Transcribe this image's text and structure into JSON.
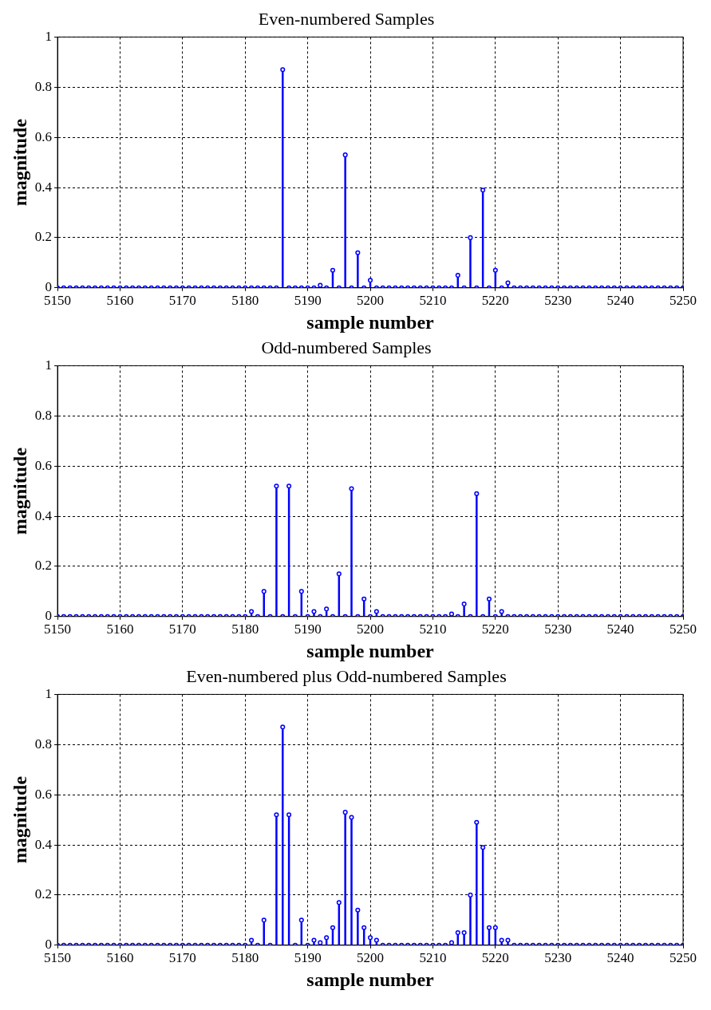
{
  "chart_data": [
    {
      "type": "lollipop",
      "title": "Even-numbered Samples",
      "xlabel": "sample number",
      "ylabel": "magnitude",
      "xlim": [
        5150,
        5250
      ],
      "xticks": [
        5150,
        5160,
        5170,
        5180,
        5190,
        5200,
        5210,
        5220,
        5230,
        5240,
        5250
      ],
      "ylim": [
        0,
        1
      ],
      "yticks": [
        0,
        0.2,
        0.4,
        0.6,
        0.8,
        1
      ],
      "grid": true,
      "legend": false,
      "marker": "circle",
      "series": [
        {
          "color": "#0000ff",
          "x": [
            5150,
            5151,
            5152,
            5153,
            5154,
            5155,
            5156,
            5157,
            5158,
            5159,
            5160,
            5161,
            5162,
            5163,
            5164,
            5165,
            5166,
            5167,
            5168,
            5169,
            5170,
            5171,
            5172,
            5173,
            5174,
            5175,
            5176,
            5177,
            5178,
            5179,
            5180,
            5181,
            5182,
            5183,
            5184,
            5185,
            5186,
            5187,
            5188,
            5189,
            5190,
            5191,
            5192,
            5193,
            5194,
            5195,
            5196,
            5197,
            5198,
            5199,
            5200,
            5201,
            5202,
            5203,
            5204,
            5205,
            5206,
            5207,
            5208,
            5209,
            5210,
            5211,
            5212,
            5213,
            5214,
            5215,
            5216,
            5217,
            5218,
            5219,
            5220,
            5221,
            5222,
            5223,
            5224,
            5225,
            5226,
            5227,
            5228,
            5229,
            5230,
            5231,
            5232,
            5233,
            5234,
            5235,
            5236,
            5237,
            5238,
            5239,
            5240,
            5241,
            5242,
            5243,
            5244,
            5245,
            5246,
            5247,
            5248,
            5249,
            5250
          ],
          "values": [
            0,
            0,
            0,
            0,
            0,
            0,
            0,
            0,
            0,
            0,
            0,
            0,
            0,
            0,
            0,
            0,
            0,
            0,
            0,
            0,
            0,
            0,
            0,
            0,
            0,
            0,
            0,
            0,
            0,
            0,
            0,
            0,
            0,
            0,
            0,
            0,
            0.87,
            0,
            0,
            0,
            0,
            0,
            0.01,
            0,
            0.07,
            0,
            0.53,
            0,
            0.14,
            0,
            0.03,
            0,
            0,
            0,
            0,
            0,
            0,
            0,
            0,
            0,
            0,
            0,
            0,
            0,
            0.05,
            0,
            0.2,
            0,
            0.39,
            0,
            0.07,
            0,
            0.02,
            0,
            0,
            0,
            0,
            0,
            0,
            0,
            0,
            0,
            0,
            0,
            0,
            0,
            0,
            0,
            0,
            0,
            0,
            0,
            0,
            0,
            0,
            0,
            0,
            0,
            0,
            0,
            0
          ]
        }
      ]
    },
    {
      "type": "lollipop",
      "title": "Odd-numbered Samples",
      "xlabel": "sample number",
      "ylabel": "magnitude",
      "xlim": [
        5150,
        5250
      ],
      "xticks": [
        5150,
        5160,
        5170,
        5180,
        5190,
        5200,
        5210,
        5220,
        5230,
        5240,
        5250
      ],
      "ylim": [
        0,
        1
      ],
      "yticks": [
        0,
        0.2,
        0.4,
        0.6,
        0.8,
        1
      ],
      "grid": true,
      "legend": false,
      "marker": "circle",
      "series": [
        {
          "color": "#0000ff",
          "x": [
            5150,
            5151,
            5152,
            5153,
            5154,
            5155,
            5156,
            5157,
            5158,
            5159,
            5160,
            5161,
            5162,
            5163,
            5164,
            5165,
            5166,
            5167,
            5168,
            5169,
            5170,
            5171,
            5172,
            5173,
            5174,
            5175,
            5176,
            5177,
            5178,
            5179,
            5180,
            5181,
            5182,
            5183,
            5184,
            5185,
            5186,
            5187,
            5188,
            5189,
            5190,
            5191,
            5192,
            5193,
            5194,
            5195,
            5196,
            5197,
            5198,
            5199,
            5200,
            5201,
            5202,
            5203,
            5204,
            5205,
            5206,
            5207,
            5208,
            5209,
            5210,
            5211,
            5212,
            5213,
            5214,
            5215,
            5216,
            5217,
            5218,
            5219,
            5220,
            5221,
            5222,
            5223,
            5224,
            5225,
            5226,
            5227,
            5228,
            5229,
            5230,
            5231,
            5232,
            5233,
            5234,
            5235,
            5236,
            5237,
            5238,
            5239,
            5240,
            5241,
            5242,
            5243,
            5244,
            5245,
            5246,
            5247,
            5248,
            5249,
            5250
          ],
          "values": [
            0,
            0,
            0,
            0,
            0,
            0,
            0,
            0,
            0,
            0,
            0,
            0,
            0,
            0,
            0,
            0,
            0,
            0,
            0,
            0,
            0,
            0,
            0,
            0,
            0,
            0,
            0,
            0,
            0,
            0,
            0,
            0.02,
            0,
            0.1,
            0,
            0.52,
            0,
            0.52,
            0,
            0.1,
            0,
            0.02,
            0,
            0.03,
            0,
            0.17,
            0,
            0.51,
            0,
            0.07,
            0,
            0.02,
            0,
            0,
            0,
            0,
            0,
            0,
            0,
            0,
            0,
            0,
            0,
            0.01,
            0,
            0.05,
            0,
            0.49,
            0,
            0.07,
            0,
            0.02,
            0,
            0,
            0,
            0,
            0,
            0,
            0,
            0,
            0,
            0,
            0,
            0,
            0,
            0,
            0,
            0,
            0,
            0,
            0,
            0,
            0,
            0,
            0,
            0,
            0,
            0,
            0,
            0,
            0
          ]
        }
      ]
    },
    {
      "type": "lollipop",
      "title": "Even-numbered plus Odd-numbered Samples",
      "xlabel": "sample number",
      "ylabel": "magnitude",
      "xlim": [
        5150,
        5250
      ],
      "xticks": [
        5150,
        5160,
        5170,
        5180,
        5190,
        5200,
        5210,
        5220,
        5230,
        5240,
        5250
      ],
      "ylim": [
        0,
        1
      ],
      "yticks": [
        0,
        0.2,
        0.4,
        0.6,
        0.8,
        1
      ],
      "grid": true,
      "legend": false,
      "marker": "circle",
      "series": [
        {
          "color": "#0000ff",
          "x": [
            5150,
            5151,
            5152,
            5153,
            5154,
            5155,
            5156,
            5157,
            5158,
            5159,
            5160,
            5161,
            5162,
            5163,
            5164,
            5165,
            5166,
            5167,
            5168,
            5169,
            5170,
            5171,
            5172,
            5173,
            5174,
            5175,
            5176,
            5177,
            5178,
            5179,
            5180,
            5181,
            5182,
            5183,
            5184,
            5185,
            5186,
            5187,
            5188,
            5189,
            5190,
            5191,
            5192,
            5193,
            5194,
            5195,
            5196,
            5197,
            5198,
            5199,
            5200,
            5201,
            5202,
            5203,
            5204,
            5205,
            5206,
            5207,
            5208,
            5209,
            5210,
            5211,
            5212,
            5213,
            5214,
            5215,
            5216,
            5217,
            5218,
            5219,
            5220,
            5221,
            5222,
            5223,
            5224,
            5225,
            5226,
            5227,
            5228,
            5229,
            5230,
            5231,
            5232,
            5233,
            5234,
            5235,
            5236,
            5237,
            5238,
            5239,
            5240,
            5241,
            5242,
            5243,
            5244,
            5245,
            5246,
            5247,
            5248,
            5249,
            5250
          ],
          "values": [
            0,
            0,
            0,
            0,
            0,
            0,
            0,
            0,
            0,
            0,
            0,
            0,
            0,
            0,
            0,
            0,
            0,
            0,
            0,
            0,
            0,
            0,
            0,
            0,
            0,
            0,
            0,
            0,
            0,
            0,
            0,
            0.02,
            0,
            0.1,
            0,
            0.52,
            0.87,
            0.52,
            0,
            0.1,
            0,
            0.02,
            0.01,
            0.03,
            0.07,
            0.17,
            0.53,
            0.51,
            0.14,
            0.07,
            0.03,
            0.02,
            0,
            0,
            0,
            0,
            0,
            0,
            0,
            0,
            0,
            0,
            0,
            0.01,
            0.05,
            0.05,
            0.2,
            0.49,
            0.39,
            0.07,
            0.07,
            0.02,
            0.02,
            0,
            0,
            0,
            0,
            0,
            0,
            0,
            0,
            0,
            0,
            0,
            0,
            0,
            0,
            0,
            0,
            0,
            0,
            0,
            0,
            0,
            0,
            0,
            0,
            0,
            0,
            0,
            0
          ]
        }
      ]
    }
  ]
}
